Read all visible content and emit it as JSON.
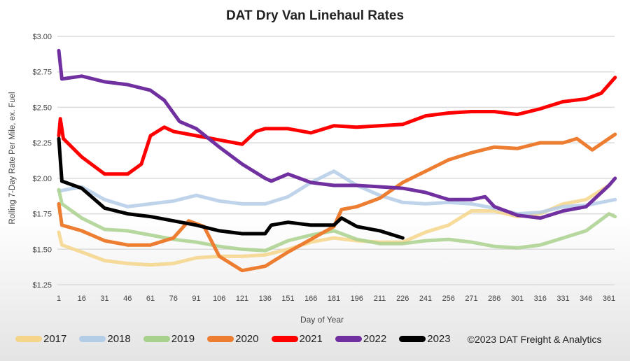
{
  "chart_data": {
    "type": "line",
    "title": "DAT Dry Van Linehaul Rates",
    "xlabel": "Day of Year",
    "ylabel": "Rolling 7-Day Rate Per Mile, ex. Fuel",
    "xlim": [
      1,
      365
    ],
    "ylim": [
      1.25,
      3.0
    ],
    "yticks": [
      "$1.25",
      "$1.50",
      "$1.75",
      "$2.00",
      "$2.25",
      "$2.50",
      "$2.75",
      "$3.00"
    ],
    "xticks": [
      "1",
      "16",
      "31",
      "46",
      "61",
      "76",
      "91",
      "106",
      "121",
      "136",
      "151",
      "166",
      "181",
      "196",
      "211",
      "226",
      "241",
      "256",
      "271",
      "286",
      "301",
      "316",
      "331",
      "346",
      "361"
    ],
    "grid": true,
    "legend_position": "bottom",
    "copyright": "©2023 DAT Freight & Analytics",
    "series": [
      {
        "name": "2017",
        "color": "#f5d58a",
        "x": [
          1,
          3,
          16,
          31,
          46,
          61,
          76,
          91,
          106,
          121,
          136,
          151,
          166,
          181,
          196,
          211,
          226,
          241,
          256,
          271,
          286,
          301,
          316,
          331,
          346,
          361
        ],
        "values": [
          1.62,
          1.53,
          1.48,
          1.42,
          1.4,
          1.39,
          1.4,
          1.44,
          1.45,
          1.45,
          1.46,
          1.5,
          1.55,
          1.58,
          1.56,
          1.55,
          1.55,
          1.62,
          1.67,
          1.77,
          1.77,
          1.73,
          1.75,
          1.82,
          1.85,
          1.95
        ]
      },
      {
        "name": "2018",
        "color": "#b4cde6",
        "x": [
          1,
          16,
          31,
          46,
          61,
          76,
          91,
          106,
          121,
          136,
          151,
          166,
          181,
          196,
          211,
          226,
          241,
          256,
          271,
          286,
          301,
          316,
          331,
          346,
          365
        ],
        "values": [
          1.91,
          1.94,
          1.85,
          1.8,
          1.82,
          1.84,
          1.88,
          1.84,
          1.82,
          1.82,
          1.87,
          1.97,
          2.05,
          1.95,
          1.88,
          1.83,
          1.82,
          1.83,
          1.82,
          1.79,
          1.75,
          1.76,
          1.8,
          1.81,
          1.85
        ]
      },
      {
        "name": "2019",
        "color": "#a9d18e",
        "x": [
          1,
          3,
          16,
          31,
          46,
          61,
          76,
          91,
          106,
          121,
          136,
          151,
          166,
          181,
          196,
          211,
          226,
          241,
          256,
          271,
          286,
          301,
          316,
          331,
          346,
          361,
          365
        ],
        "values": [
          1.92,
          1.82,
          1.72,
          1.64,
          1.63,
          1.6,
          1.57,
          1.55,
          1.52,
          1.5,
          1.49,
          1.56,
          1.6,
          1.63,
          1.57,
          1.54,
          1.54,
          1.56,
          1.57,
          1.55,
          1.52,
          1.51,
          1.53,
          1.58,
          1.63,
          1.75,
          1.73
        ]
      },
      {
        "name": "2020",
        "color": "#ed7d31",
        "x": [
          1,
          3,
          16,
          31,
          46,
          61,
          76,
          86,
          96,
          106,
          121,
          136,
          151,
          166,
          181,
          186,
          196,
          211,
          226,
          241,
          256,
          271,
          286,
          301,
          316,
          331,
          340,
          350,
          365
        ],
        "values": [
          1.82,
          1.67,
          1.63,
          1.56,
          1.53,
          1.53,
          1.58,
          1.7,
          1.66,
          1.45,
          1.35,
          1.38,
          1.48,
          1.57,
          1.66,
          1.78,
          1.8,
          1.86,
          1.97,
          2.05,
          2.13,
          2.18,
          2.22,
          2.21,
          2.25,
          2.25,
          2.28,
          2.2,
          2.31
        ]
      },
      {
        "name": "2021",
        "color": "#ff0000",
        "x": [
          1,
          2,
          4,
          16,
          31,
          46,
          55,
          61,
          70,
          76,
          91,
          106,
          121,
          130,
          136,
          151,
          166,
          181,
          196,
          211,
          226,
          241,
          256,
          271,
          286,
          301,
          316,
          331,
          346,
          356,
          365
        ],
        "values": [
          2.3,
          2.42,
          2.28,
          2.15,
          2.03,
          2.03,
          2.1,
          2.3,
          2.36,
          2.33,
          2.3,
          2.27,
          2.24,
          2.33,
          2.35,
          2.35,
          2.32,
          2.37,
          2.36,
          2.37,
          2.38,
          2.44,
          2.46,
          2.47,
          2.47,
          2.45,
          2.49,
          2.54,
          2.56,
          2.6,
          2.71
        ]
      },
      {
        "name": "2022",
        "color": "#7030a0",
        "x": [
          1,
          3,
          16,
          31,
          46,
          61,
          70,
          80,
          91,
          106,
          121,
          136,
          140,
          151,
          166,
          181,
          196,
          211,
          226,
          241,
          256,
          271,
          280,
          286,
          301,
          316,
          331,
          346,
          361,
          365
        ],
        "values": [
          2.9,
          2.7,
          2.72,
          2.68,
          2.66,
          2.62,
          2.55,
          2.4,
          2.35,
          2.22,
          2.1,
          2.0,
          1.98,
          2.03,
          1.97,
          1.95,
          1.95,
          1.94,
          1.93,
          1.9,
          1.85,
          1.85,
          1.87,
          1.8,
          1.74,
          1.72,
          1.77,
          1.8,
          1.95,
          2.0
        ]
      },
      {
        "name": "2023",
        "color": "#000000",
        "x": [
          1,
          3,
          16,
          31,
          46,
          61,
          76,
          91,
          106,
          121,
          136,
          140,
          151,
          166,
          181,
          186,
          196,
          211,
          226
        ],
        "values": [
          2.28,
          1.98,
          1.93,
          1.79,
          1.75,
          1.73,
          1.7,
          1.67,
          1.63,
          1.61,
          1.61,
          1.67,
          1.69,
          1.67,
          1.67,
          1.72,
          1.66,
          1.63,
          1.58
        ]
      }
    ]
  }
}
